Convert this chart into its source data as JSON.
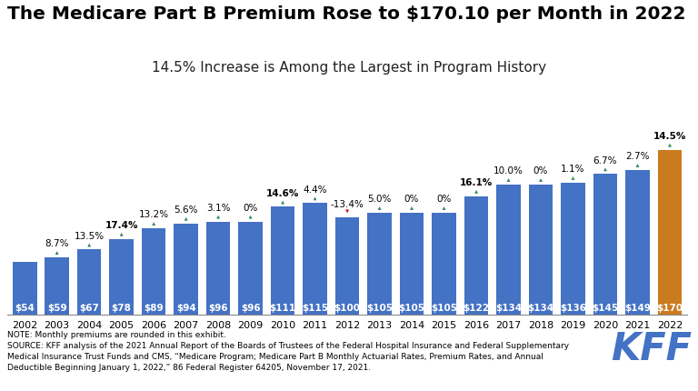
{
  "years": [
    2002,
    2003,
    2004,
    2005,
    2006,
    2007,
    2008,
    2009,
    2010,
    2011,
    2012,
    2013,
    2014,
    2015,
    2016,
    2017,
    2018,
    2019,
    2020,
    2021,
    2022
  ],
  "values": [
    54,
    59,
    67,
    78,
    89,
    94,
    96,
    96,
    111,
    115,
    100,
    105,
    105,
    105,
    122,
    134,
    134,
    136,
    145,
    149,
    170
  ],
  "pct_changes": [
    "8.7%",
    "13.5%",
    "17.4%",
    "13.2%",
    "5.6%",
    "3.1%",
    "0%",
    "14.6%",
    "4.4%",
    "-13.4%",
    "5.0%",
    "0%",
    "0%",
    "16.1%",
    "10.0%",
    "0%",
    "1.1%",
    "6.7%",
    "2.7%",
    "14.5%"
  ],
  "bar_color_main": "#4472C4",
  "bar_color_highlight": "#C97B1E",
  "arrow_up_color": "#2E8B57",
  "arrow_down_color": "#CC0000",
  "bold_pct": [
    "17.4%",
    "14.6%",
    "16.1%",
    "14.5%"
  ],
  "title": "The Medicare Part B Premium Rose to $170.10 per Month in 2022",
  "subtitle": "14.5% Increase is Among the Largest in Program History",
  "note_line1": "NOTE: Monthly premiums are rounded in this exhibit.",
  "note_line2": "SOURCE: KFF analysis of the 2021 Annual Report of the Boards of Trustees of the Federal Hospital Insurance and Federal Supplementary",
  "note_line3": "Medical Insurance Trust Funds and CMS, “Medicare Program; Medicare Part B Monthly Actuarial Rates, Premium Rates, and Annual",
  "note_line4": "Deductible Beginning January 1, 2022,” 86 Federal Register 64205, November 17, 2021.",
  "bg_color": "#FFFFFF",
  "title_fontsize": 14.5,
  "subtitle_fontsize": 11,
  "bar_label_fontsize": 7.5,
  "pct_fontsize": 7.5,
  "note_fontsize": 6.5,
  "ylim": [
    0,
    210
  ]
}
